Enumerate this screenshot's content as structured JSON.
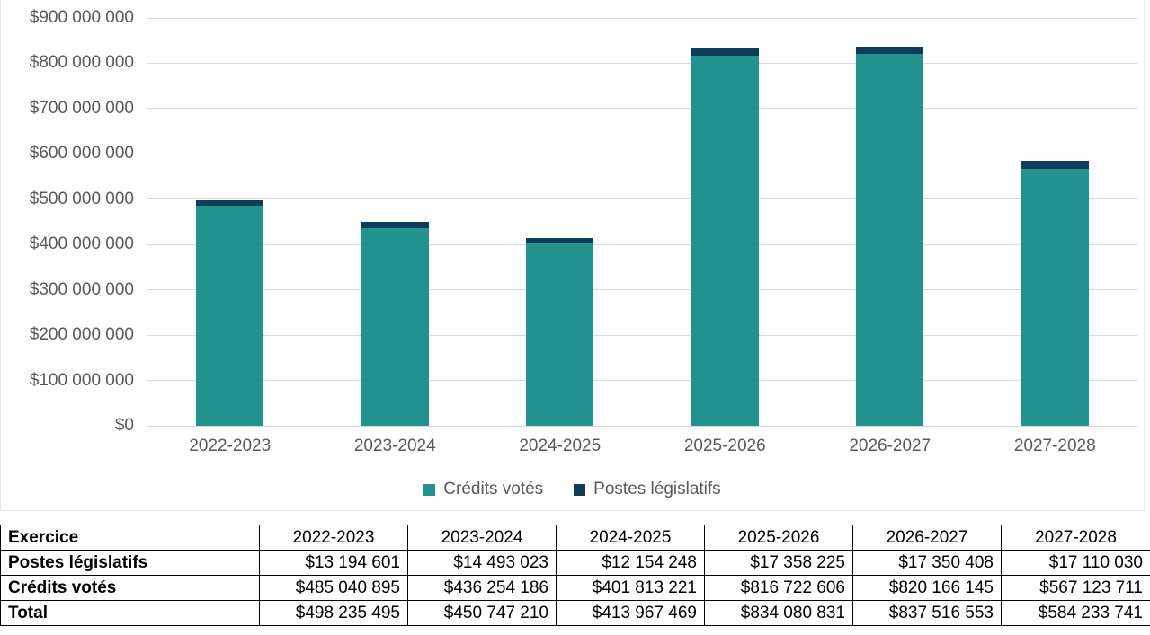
{
  "chart_data": {
    "type": "bar",
    "stacked": true,
    "title": "",
    "xlabel": "",
    "ylabel": "",
    "ylim": [
      0,
      900000000
    ],
    "y_tick_step": 100000000,
    "y_tick_labels": [
      "$0",
      "$100 000 000",
      "$200 000 000",
      "$300 000 000",
      "$400 000 000",
      "$500 000 000",
      "$600 000 000",
      "$700 000 000",
      "$800 000 000",
      "$900 000 000"
    ],
    "grid": true,
    "legend_position": "bottom",
    "categories": [
      "2022-2023",
      "2023-2024",
      "2024-2025",
      "2025-2026",
      "2026-2027",
      "2027-2028"
    ],
    "series": [
      {
        "name": "Crédits votés",
        "color": "#23938f",
        "values": [
          485040895,
          436254186,
          401813221,
          816722606,
          820166145,
          567123711
        ]
      },
      {
        "name": "Postes législatifs",
        "color": "#0e3d5c",
        "values": [
          13194601,
          14493023,
          12154248,
          17358225,
          17350408,
          17110030
        ]
      }
    ],
    "totals": [
      498235495,
      450747210,
      413967469,
      834080831,
      837516553,
      584233741
    ]
  },
  "colors": {
    "credits_votes": "#23938f",
    "postes_legislatifs": "#0e3d5c",
    "gridline": "#d9d9d9",
    "axis_text": "#595959",
    "table_border": "#000000"
  },
  "table": {
    "corner_label": "Exercice",
    "columns": [
      "2022-2023",
      "2023-2024",
      "2024-2025",
      "2025-2026",
      "2026-2027",
      "2027-2028"
    ],
    "rows": [
      {
        "label": "Postes législatifs",
        "values": [
          "$13 194 601",
          "$14 493 023",
          "$12 154 248",
          "$17 358 225",
          "$17 350 408",
          "$17 110 030"
        ]
      },
      {
        "label": "Crédits votés",
        "values": [
          "$485 040 895",
          "$436 254 186",
          "$401 813 221",
          "$816 722 606",
          "$820 166 145",
          "$567 123 711"
        ]
      },
      {
        "label": "Total",
        "values": [
          "$498 235 495",
          "$450 747 210",
          "$413 967 469",
          "$834 080 831",
          "$837 516 553",
          "$584 233 741"
        ]
      }
    ]
  }
}
